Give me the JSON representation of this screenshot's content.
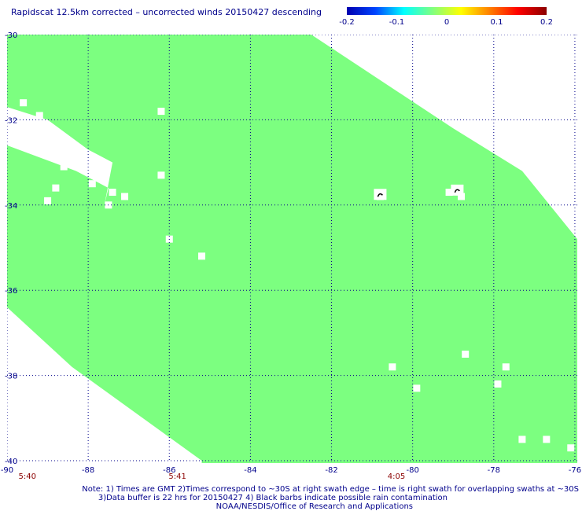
{
  "colors": {
    "swath": "#7cff80",
    "grid": "#00008b",
    "text": "#00008b",
    "time_text": "#8b0000",
    "rain_barb": "#000000",
    "colorbar_stops": [
      "#0000b0",
      "#0044ff",
      "#00ffff",
      "#80ff80",
      "#ffff00",
      "#ff8000",
      "#ff0000",
      "#8b0000"
    ]
  },
  "chart_data": {
    "type": "heatmap",
    "title": "Rapidscat 12.5km corrected – uncorrected winds 20150427 descending",
    "xlabel": "",
    "ylabel": "",
    "xlim": [
      -90,
      -75
    ],
    "ylim": [
      -40,
      -30
    ],
    "x_ticks": [
      -90,
      -88,
      -86,
      -84,
      -82,
      -80,
      -78,
      -76
    ],
    "x_tick_labels": [
      "-90",
      "-88",
      "-86",
      "-84",
      "-82",
      "-80",
      "-78",
      "-76"
    ],
    "y_ticks": [
      -30,
      -32,
      -34,
      -36,
      -38,
      -40
    ],
    "y_tick_labels": [
      "-30",
      "-32",
      "-34",
      "-36",
      "-38",
      "-40"
    ],
    "grid": true,
    "colorbar": {
      "range": [
        -0.2,
        0.2
      ],
      "tick_values": [
        -0.2,
        -0.1,
        0,
        0.1,
        0.2
      ],
      "tick_labels": [
        "-0.2",
        "-0.1",
        "0",
        "0.1",
        "0.2"
      ],
      "placement": "top-right"
    },
    "swath_value": 0,
    "swath_boundary_upper_right": [
      [
        -82.5,
        -30
      ],
      [
        -79,
        -32.2
      ],
      [
        -77.3,
        -33.2
      ],
      [
        -75.6,
        -35.2
      ],
      [
        -75,
        -35.2
      ]
    ],
    "swath_boundary_lower_left": [
      [
        -90,
        -36.4
      ],
      [
        -88.4,
        -37.8
      ],
      [
        -85.2,
        -40
      ]
    ],
    "swath_boundary_left_gap": [
      [
        -90,
        -32.6
      ],
      [
        -88.3,
        -33.2
      ],
      [
        -87.5,
        -33.6
      ],
      [
        -87.6,
        -34
      ]
    ],
    "missing_cells": [
      [
        -86.2,
        -31.8
      ],
      [
        -89.6,
        -31.6
      ],
      [
        -89.2,
        -31.9
      ],
      [
        -89.4,
        -32.3
      ],
      [
        -88.9,
        -32.5
      ],
      [
        -88.6,
        -33.1
      ],
      [
        -88.8,
        -33.6
      ],
      [
        -89,
        -33.9
      ],
      [
        -87.9,
        -33.5
      ],
      [
        -87.4,
        -33.7
      ],
      [
        -87.5,
        -34.0
      ],
      [
        -87.1,
        -33.8
      ],
      [
        -86.2,
        -33.3
      ],
      [
        -80.8,
        -33.8
      ],
      [
        -79.1,
        -33.7
      ],
      [
        -78.8,
        -33.8
      ],
      [
        -86,
        -34.8
      ],
      [
        -85.2,
        -35.2
      ],
      [
        -80.5,
        -37.8
      ],
      [
        -79.9,
        -38.3
      ],
      [
        -78.7,
        -37.5
      ],
      [
        -77.7,
        -37.8
      ],
      [
        -77.9,
        -38.2
      ],
      [
        -77.3,
        -39.5
      ],
      [
        -76.7,
        -39.5
      ],
      [
        -76.1,
        -39.7
      ],
      [
        -75.7,
        -39.8
      ]
    ],
    "rain_flag_points": [
      [
        -80.8,
        -33.75
      ],
      [
        -78.9,
        -33.65
      ]
    ],
    "time_labels": [
      {
        "lon": -89.5,
        "text": "5:40"
      },
      {
        "lon": -85.8,
        "text": "5:41"
      },
      {
        "lon": -80.4,
        "text": "4:05"
      }
    ]
  },
  "notes": {
    "line1": "Note: 1) Times are GMT 2)Times correspond to ~30S at right swath edge – time is right swath for overlapping swaths at ~30S",
    "line2": "3)Data buffer is 22 hrs for 20150427 4) Black barbs indicate possible rain contamination",
    "line3": "NOAA/NESDIS/Office of Research and Applications"
  }
}
